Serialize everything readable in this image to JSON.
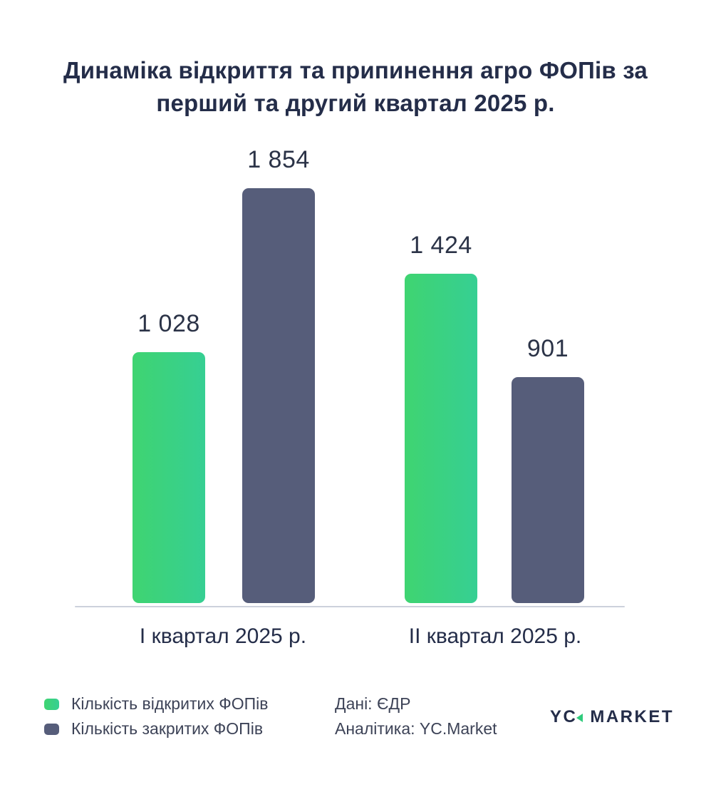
{
  "title": "Динаміка відкриття та припинення агро ФОПів за перший та другий квартал 2025 р.",
  "chart_data": {
    "type": "bar",
    "title": "Динаміка відкриття та припинення агро ФОПів за перший та другий квартал 2025 р.",
    "categories": [
      "І квартал 2025 р.",
      "ІІ квартал 2025 р."
    ],
    "series": [
      {
        "name": "Кількість відкритих ФОПів",
        "values": [
          1028,
          1424
        ],
        "labels": [
          "1 028",
          "1 424"
        ],
        "color": "#3fd471",
        "color2": "#36cf93"
      },
      {
        "name": "Кількість закритих ФОПів",
        "values": [
          1854,
          901
        ],
        "labels": [
          "1 854",
          "901"
        ],
        "color": "#565d7a"
      }
    ],
    "xlabel": "",
    "ylabel": "",
    "grid": false,
    "value_labels": true,
    "legend_position": "bottom-left",
    "axis_line_color": "#ccd1dc"
  },
  "footer": {
    "source_line1": "Дані: ЄДР",
    "source_line2": "Аналітика: YC.Market",
    "logo_left": "YC",
    "logo_right": "MARKET",
    "logo_accent_color": "#2fcb7c"
  },
  "colors": {
    "title_text": "#242d49",
    "value_text": "#2b3347",
    "footer_text": "#3d4357",
    "background": "#ffffff"
  }
}
